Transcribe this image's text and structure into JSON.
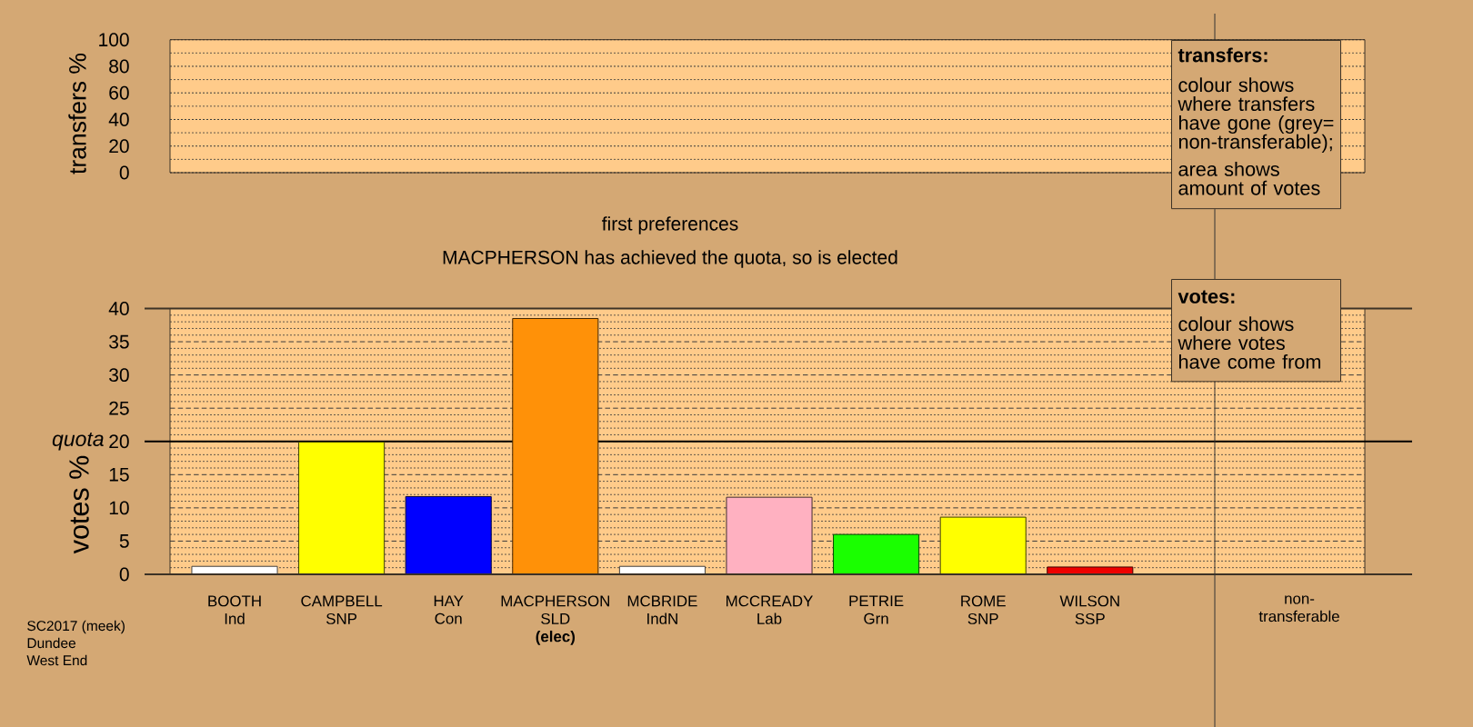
{
  "chart_data": [
    {
      "type": "bar",
      "ylabel": "transfers %",
      "categories": [
        null,
        null,
        null,
        null,
        null,
        null,
        null,
        null,
        null,
        null,
        null
      ],
      "values": [
        null,
        null,
        null,
        null,
        null,
        null,
        null,
        null,
        null,
        null,
        null
      ],
      "ylim": [
        0,
        100
      ],
      "yticks": [
        0,
        20,
        40,
        60,
        80,
        100
      ],
      "grid": "y",
      "tick_labels": "y",
      "annotations": [
        "transfers:",
        "colour shows where transfers have gone (grey= non-transferable);",
        "area shows amount of votes"
      ]
    },
    {
      "type": "bar",
      "title": "first preferences",
      "subtitle": "MACPHERSON has achieved the quota, so is elected",
      "ylabel": "votes %",
      "categories": [
        "BOOTH Ind",
        "CAMPBELL SNP",
        "HAY Con",
        "MACPHERSON SLD **(elec)**",
        "MCBRIDE IndN",
        "MCCREADY Lab",
        "PETRIE Grn",
        "ROME SNP",
        "WILSON SSP"
      ],
      "values": [
        1.2,
        19.9,
        11.7,
        38.5,
        1.2,
        11.6,
        6,
        8.6,
        1.1
      ],
      "colors": [
        "#ffffff",
        "#ffff00",
        "#0000ff",
        "#ff9108",
        "#ffffff",
        "#ffb1c1",
        "#1aff00",
        "#ffff00",
        "#ee0000"
      ],
      "ylim": [
        0,
        40
      ],
      "yticks": [
        0,
        5,
        10,
        15,
        20,
        25,
        30,
        35,
        40
      ],
      "grid": "y",
      "ref_lines": [
        {
          "axis": "y",
          "value": 20,
          "label": "quota",
          "color": "#000000"
        }
      ],
      "annotations": [
        "votes:",
        "colour shows where votes have come from",
        "SC2017 (meek)",
        "Dundee",
        "West End"
      ]
    },
    {
      "type": "bar",
      "categories": [
        "non-transferable"
      ],
      "values": [
        null
      ],
      "ylim": [
        0,
        40
      ],
      "tick_labels": "x"
    }
  ]
}
